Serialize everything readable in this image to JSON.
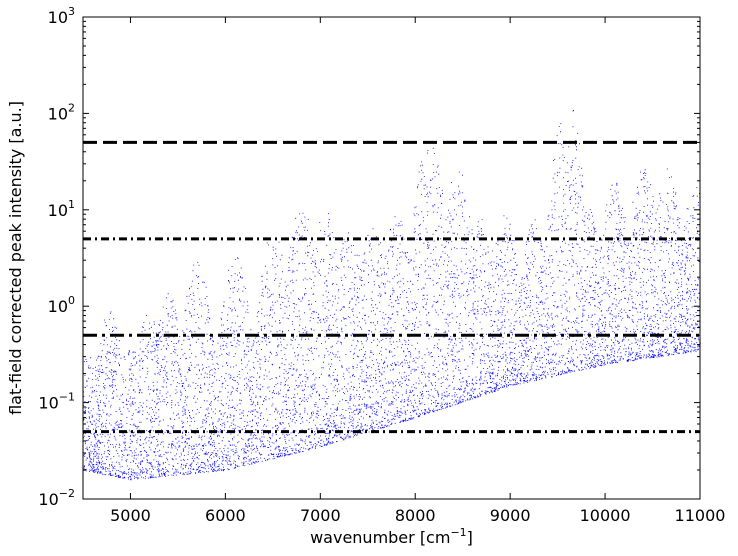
{
  "chart_data": {
    "type": "scatter",
    "xlabel": {
      "text": "wavenumber [cm",
      "sup": "−1",
      "close": "]"
    },
    "ylabel": "flat-field corrected peak intensity [a.u.]",
    "x_scale": "linear",
    "y_scale": "log",
    "xlim": [
      4500,
      11000
    ],
    "ylim": [
      0.01,
      1000
    ],
    "x_ticks": [
      5000,
      6000,
      7000,
      8000,
      9000,
      10000,
      11000
    ],
    "x_tick_labels": [
      "5000",
      "6000",
      "7000",
      "8000",
      "9000",
      "10000",
      "11000"
    ],
    "y_ticks": [
      0.01,
      0.1,
      1,
      10,
      100,
      1000
    ],
    "y_tick_labels": [
      {
        "base": "10",
        "exp": "−2"
      },
      {
        "base": "10",
        "exp": "−1"
      },
      {
        "base": "10",
        "exp": "0"
      },
      {
        "base": "10",
        "exp": "1"
      },
      {
        "base": "10",
        "exp": "2"
      },
      {
        "base": "10",
        "exp": "3"
      }
    ],
    "grid": false,
    "legend": "none",
    "point_color": "#0000ff",
    "horizontal_lines": [
      {
        "y": 50,
        "style": "dashed",
        "x_start": 4500
      },
      {
        "y": 5,
        "style": "dashdot",
        "x_start": 4500
      },
      {
        "y": 0.5,
        "style": "dashed-dot",
        "x_start": 4500
      },
      {
        "y": 0.05,
        "style": "dashdot",
        "x_start": 4500
      }
    ],
    "series": [
      {
        "points_description_note_removed": null,
        "peaks": [
          {
            "x": 4780,
            "y": 0.9
          },
          {
            "x": 5000,
            "y": 0.4
          },
          {
            "x": 5200,
            "y": 1.0
          },
          {
            "x": 5400,
            "y": 1.4
          },
          {
            "x": 5700,
            "y": 3.0
          },
          {
            "x": 6100,
            "y": 3.5
          },
          {
            "x": 6500,
            "y": 6.0
          },
          {
            "x": 6800,
            "y": 11.0
          },
          {
            "x": 7050,
            "y": 10.0
          },
          {
            "x": 7300,
            "y": 7.0
          },
          {
            "x": 7550,
            "y": 7.0
          },
          {
            "x": 7800,
            "y": 9.0
          },
          {
            "x": 8150,
            "y": 60.0
          },
          {
            "x": 8450,
            "y": 28.0
          },
          {
            "x": 8700,
            "y": 9.0
          },
          {
            "x": 8950,
            "y": 9.0
          },
          {
            "x": 9250,
            "y": 8.0
          },
          {
            "x": 9600,
            "y": 145.0
          },
          {
            "x": 9800,
            "y": 12.0
          },
          {
            "x": 10100,
            "y": 20.0
          },
          {
            "x": 10400,
            "y": 28.0
          },
          {
            "x": 10650,
            "y": 28.0
          },
          {
            "x": 10950,
            "y": 18.0
          }
        ],
        "floor": [
          {
            "x": 4500,
            "y": 0.02
          },
          {
            "x": 5000,
            "y": 0.016
          },
          {
            "x": 6000,
            "y": 0.02
          },
          {
            "x": 7000,
            "y": 0.035
          },
          {
            "x": 8000,
            "y": 0.07
          },
          {
            "x": 9000,
            "y": 0.15
          },
          {
            "x": 10000,
            "y": 0.25
          },
          {
            "x": 11000,
            "y": 0.35
          }
        ]
      }
    ]
  }
}
